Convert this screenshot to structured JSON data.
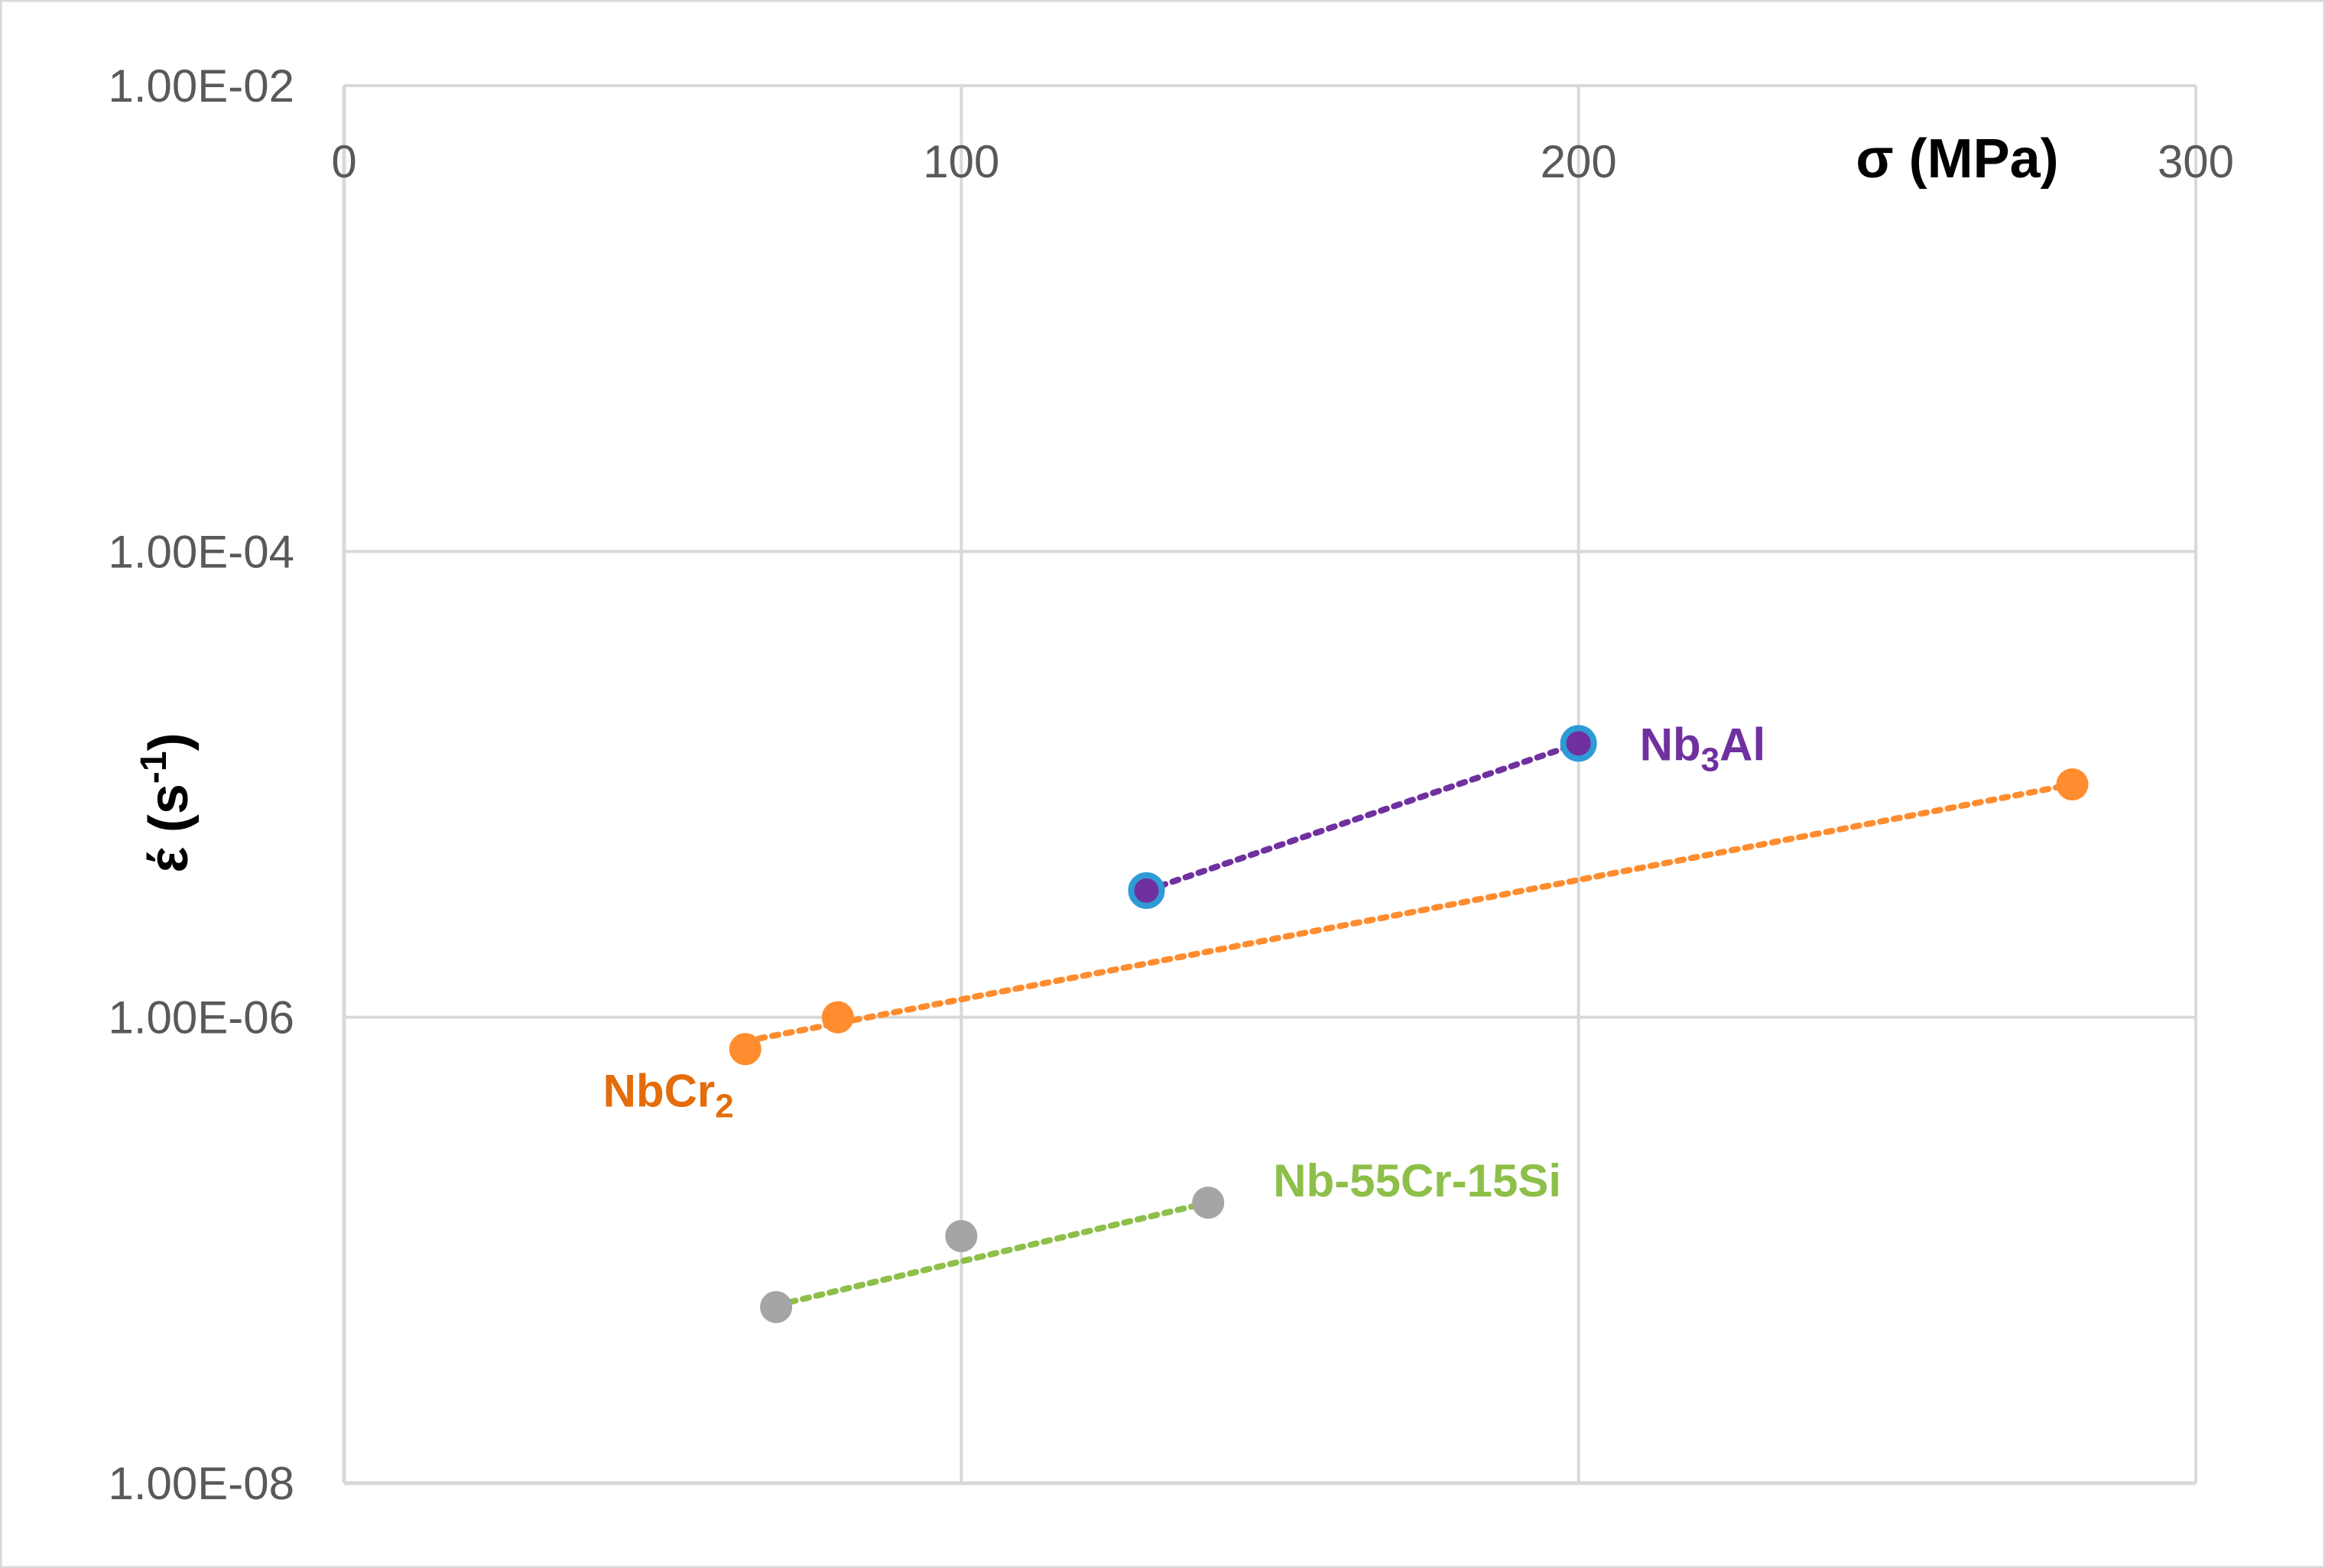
{
  "chart_data": {
    "type": "scatter",
    "title": "",
    "xlabel": "σ (MPa)",
    "ylabel": {
      "base": "έ (s",
      "sup": "-1",
      "end": ")"
    },
    "xlim": [
      0,
      300
    ],
    "ylim": [
      1e-08,
      0.01
    ],
    "y_scale": "log",
    "x_position": "top",
    "grid": true,
    "legend": "none",
    "x_ticks": [
      {
        "value": 0,
        "label": "0"
      },
      {
        "value": 100,
        "label": "100"
      },
      {
        "value": 200,
        "label": "200"
      },
      {
        "value": 300,
        "label": "300"
      }
    ],
    "y_ticks": [
      {
        "value": 0.01,
        "label": "1.00E-02"
      },
      {
        "value": 0.0001,
        "label": "1.00E-04"
      },
      {
        "value": 1e-06,
        "label": "1.00E-06"
      },
      {
        "value": 1e-08,
        "label": "1.00E-08"
      }
    ],
    "series": [
      {
        "name": "Nb3Al",
        "label": {
          "base": "Nb",
          "sub": "3",
          "end": "Al"
        },
        "marker_color": "#7030A0",
        "marker_edge": "#2E9BD6",
        "trendline_color": "#7030A0",
        "text_color": "#7030A0",
        "points": [
          {
            "x": 130,
            "y": 3.5e-06
          },
          {
            "x": 200,
            "y": 1.5e-05
          }
        ],
        "trendline": [
          {
            "x": 130,
            "y": 3.5e-06
          },
          {
            "x": 200,
            "y": 1.5e-05
          }
        ]
      },
      {
        "name": "NbCr2",
        "label": {
          "base": "NbCr",
          "sub": "2",
          "end": ""
        },
        "marker_color": "#FF8C2E",
        "marker_edge": "#FF8C2E",
        "trendline_color": "#FF8C2E",
        "text_color": "#E46C0A",
        "points": [
          {
            "x": 65,
            "y": 7.3e-07
          },
          {
            "x": 80,
            "y": 1e-06
          },
          {
            "x": 280,
            "y": 1e-05
          }
        ],
        "trendline": [
          {
            "x": 65,
            "y": 7.9e-07
          },
          {
            "x": 280,
            "y": 1e-05
          }
        ]
      },
      {
        "name": "Nb-55Cr-15Si",
        "label": {
          "base": "Nb-55Cr-15Si",
          "sub": "",
          "end": ""
        },
        "marker_color": "#A5A5A5",
        "marker_edge": "#A5A5A5",
        "trendline_color": "#8DBF49",
        "text_color": "#8DBF49",
        "points": [
          {
            "x": 70,
            "y": 5.7e-08
          },
          {
            "x": 100,
            "y": 1.15e-07
          },
          {
            "x": 140,
            "y": 1.6e-07
          }
        ],
        "trendline": [
          {
            "x": 70,
            "y": 5.8e-08
          },
          {
            "x": 140,
            "y": 1.6e-07
          }
        ]
      }
    ]
  }
}
